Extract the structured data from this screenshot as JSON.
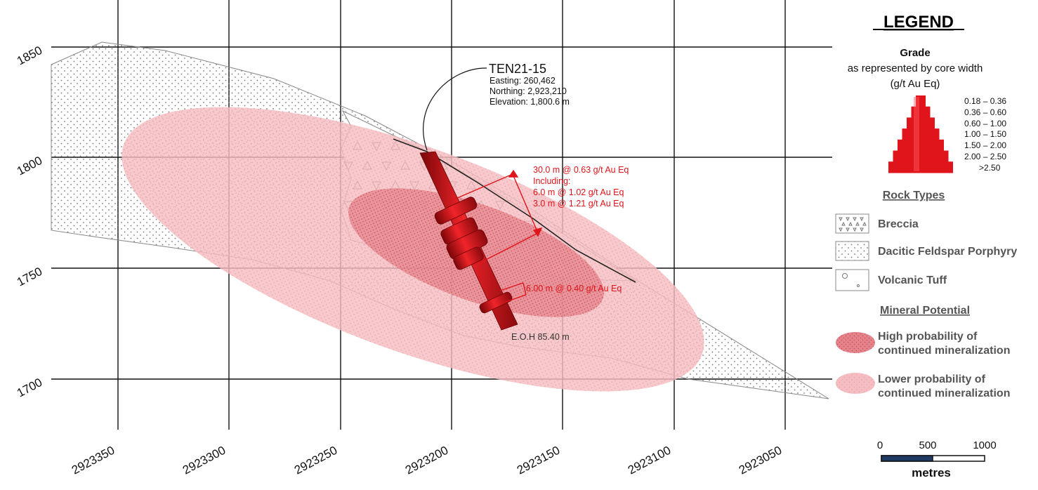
{
  "section": {
    "elevation_ticks": [
      "1850",
      "1800",
      "1750",
      "1700"
    ],
    "northing_ticks": [
      "2923350",
      "2923300",
      "2923250",
      "2923200",
      "2923150",
      "2923100",
      "2923050"
    ]
  },
  "drillhole": {
    "id": "TEN21-15",
    "easting": "Easting: 260,462",
    "northing": "Northing: 2,923,210",
    "elevation": "Elevation: 1,800.6 m",
    "eoh": "E.O.H 85.40 m",
    "color": "#d9131b"
  },
  "assays": {
    "main": "30.0 m @ 0.63 g/t Au Eq",
    "including": "Including:",
    "sub1": "6.0 m @ 1.02 g/t Au Eq",
    "sub2": "3.0 m @ 1.21 g/t Au Eq",
    "lower": "6.00 m @ 0.40 g/t Au Eq"
  },
  "legend": {
    "title": "LEGEND",
    "grade_title": "Grade",
    "grade_sub1": "as represented by core width",
    "grade_sub2": "(g/t Au Eq)",
    "grade_ranges": [
      "0.18 – 0.36",
      "0.36 – 0.60",
      "0.60 – 1.00",
      "1.00 – 1.50",
      "1.50 – 2.00",
      "2.00 – 2.50",
      ">2.50"
    ],
    "rock_types_title": "Rock Types",
    "rock_types": [
      "Breccia",
      "Dacitic Feldspar Porphyry",
      "Volcanic Tuff"
    ],
    "mineral_title": "Mineral Potential",
    "high_line1": "High probability of",
    "high_line2": "continued mineralization",
    "low_line1": "Lower probability of",
    "low_line2": "continued mineralization",
    "colors": {
      "high": "#e88e95",
      "low": "#f6c6c9",
      "grade": "#e0141b"
    }
  },
  "scale": {
    "labels": [
      "0",
      "500",
      "1000"
    ],
    "unit": "metres"
  }
}
